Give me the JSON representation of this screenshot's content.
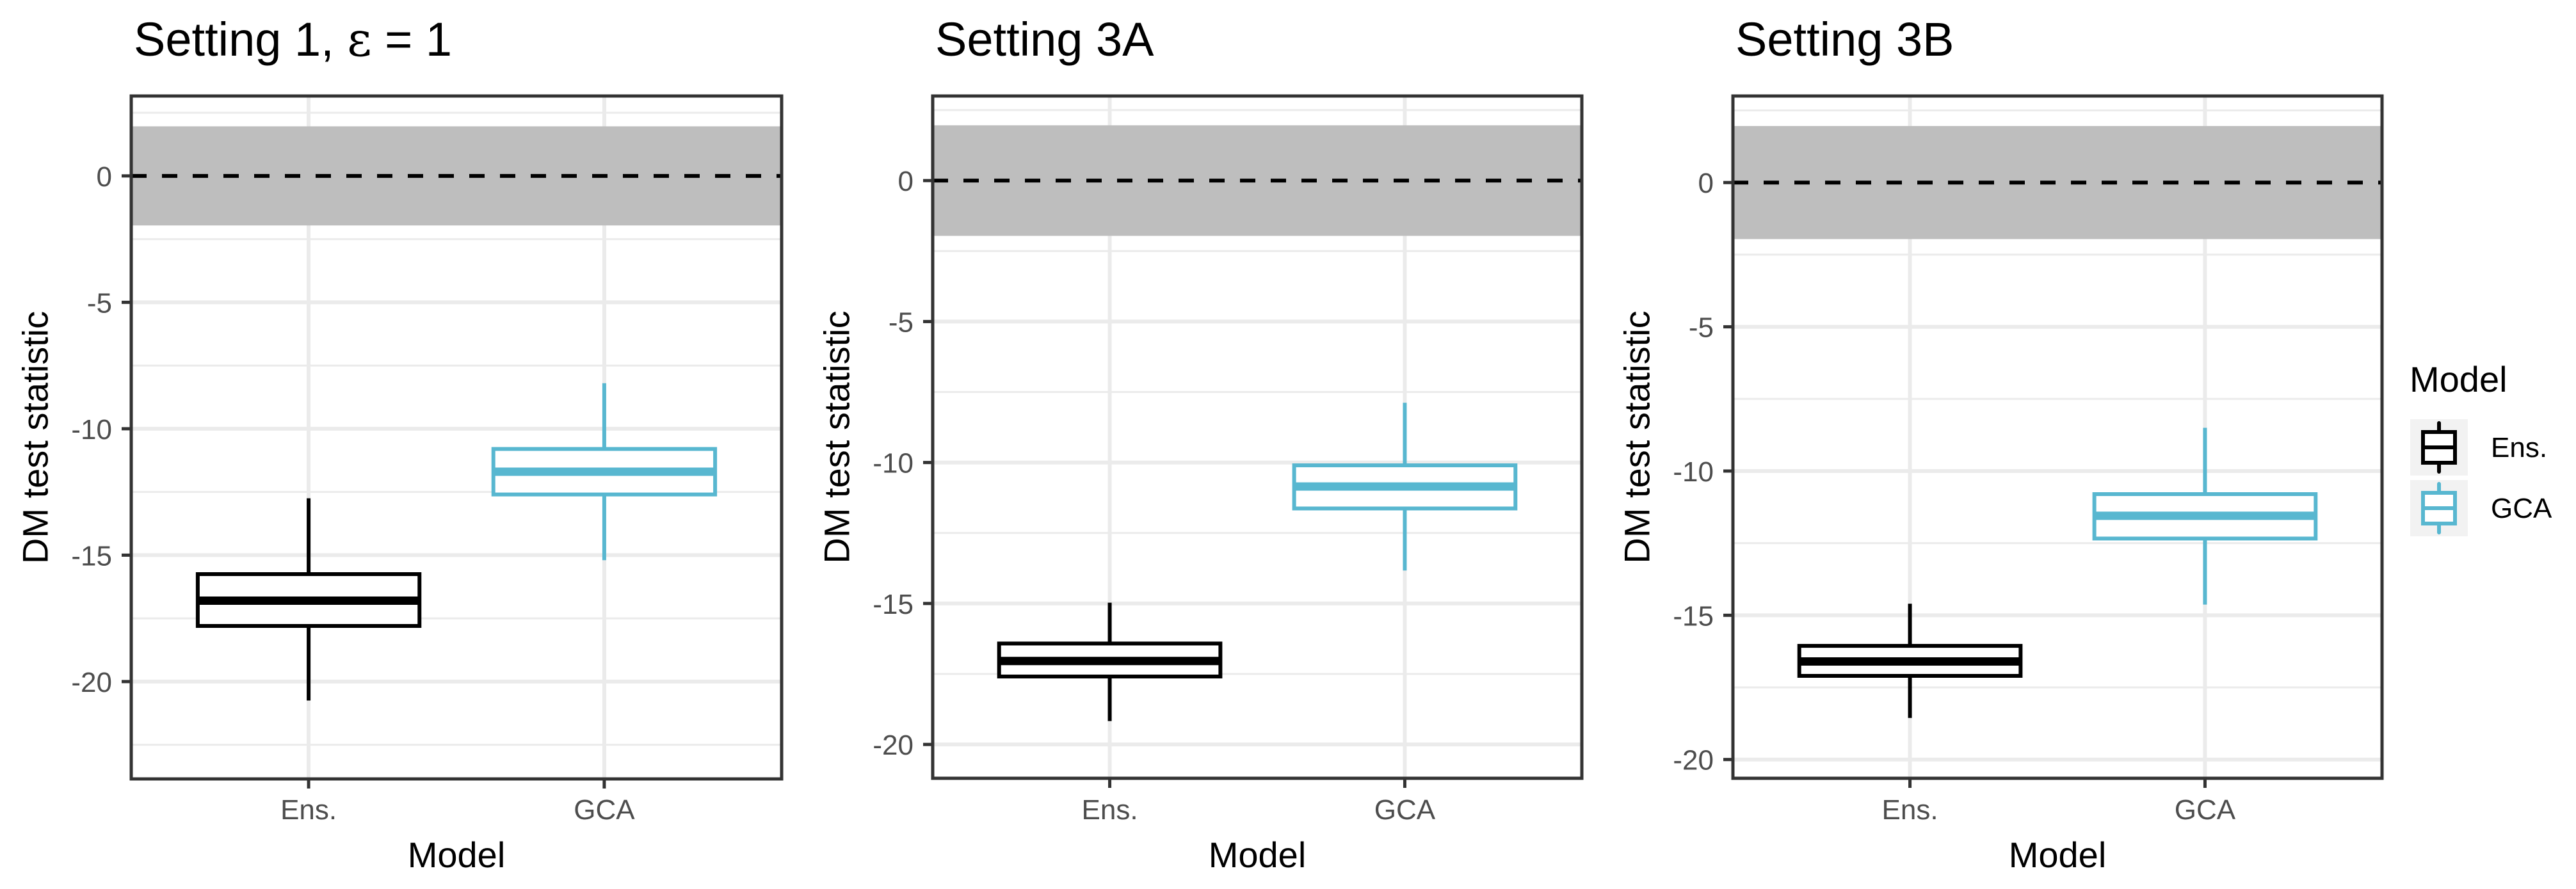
{
  "chart_data": [
    {
      "type": "boxplot",
      "title": "Setting 1, ε = 1",
      "title_parts": [
        "Setting 1, ",
        "ε",
        " = 1"
      ],
      "xlabel": "Model",
      "ylabel": "DM test statistic",
      "categories": [
        "Ens.",
        "GCA"
      ],
      "ylim": [
        -23.85,
        3.16
      ],
      "yticks": [
        0,
        -5,
        -10,
        -15,
        -20
      ],
      "ytick_labels": [
        "0",
        "-5",
        "-10",
        "-15",
        "-20"
      ],
      "reference_line": 0,
      "shaded_band": [
        -1.96,
        1.96
      ],
      "grid": true,
      "series": [
        {
          "name": "Ens.",
          "whisker_low": -20.75,
          "q1": -17.8,
          "median": -16.8,
          "q3": -15.75,
          "whisker_high": -12.75
        },
        {
          "name": "GCA",
          "whisker_low": -15.2,
          "q1": -12.6,
          "median": -11.7,
          "q3": -10.8,
          "whisker_high": -8.2
        }
      ]
    },
    {
      "type": "boxplot",
      "title": "Setting 3A",
      "title_parts": [
        "Setting 3A"
      ],
      "xlabel": "Model",
      "ylabel": "DM test statistic",
      "categories": [
        "Ens.",
        "GCA"
      ],
      "ylim": [
        -21.2,
        3.0
      ],
      "yticks": [
        0,
        -5,
        -10,
        -15,
        -20
      ],
      "ytick_labels": [
        "0",
        "-5",
        "-10",
        "-15",
        "-20"
      ],
      "reference_line": 0,
      "shaded_band": [
        -1.96,
        1.96
      ],
      "grid": true,
      "series": [
        {
          "name": "Ens.",
          "whisker_low": -19.17,
          "q1": -17.59,
          "median": -17.04,
          "q3": -16.42,
          "whisker_high": -14.97
        },
        {
          "name": "GCA",
          "whisker_low": -13.83,
          "q1": -11.63,
          "median": -10.85,
          "q3": -10.1,
          "whisker_high": -7.88
        }
      ]
    },
    {
      "type": "boxplot",
      "title": "Setting 3B",
      "title_parts": [
        "Setting 3B"
      ],
      "xlabel": "Model",
      "ylabel": "DM test statistic",
      "categories": [
        "Ens.",
        "GCA"
      ],
      "ylim": [
        -20.65,
        3.0
      ],
      "yticks": [
        0,
        -5,
        -10,
        -15,
        -20
      ],
      "ytick_labels": [
        "0",
        "-5",
        "-10",
        "-15",
        "-20"
      ],
      "reference_line": 0,
      "shaded_band": [
        -1.96,
        1.96
      ],
      "grid": true,
      "series": [
        {
          "name": "Ens.",
          "whisker_low": -18.56,
          "q1": -17.1,
          "median": -16.6,
          "q3": -16.06,
          "whisker_high": -14.6
        },
        {
          "name": "GCA",
          "whisker_low": -14.63,
          "q1": -12.34,
          "median": -11.55,
          "q3": -10.8,
          "whisker_high": -8.5
        }
      ]
    }
  ],
  "legend": {
    "title": "Model",
    "placement": "right",
    "items": [
      {
        "label": "Ens.",
        "color": "#000000"
      },
      {
        "label": "GCA",
        "color": "#58B7D0"
      }
    ]
  },
  "colors": {
    "Ens.": "#000000",
    "GCA": "#58B7D0",
    "band": "#BEBEBE",
    "grid": "#EBEBEB",
    "axis_text": "#4D4D4D",
    "panel_border": "#333333"
  }
}
